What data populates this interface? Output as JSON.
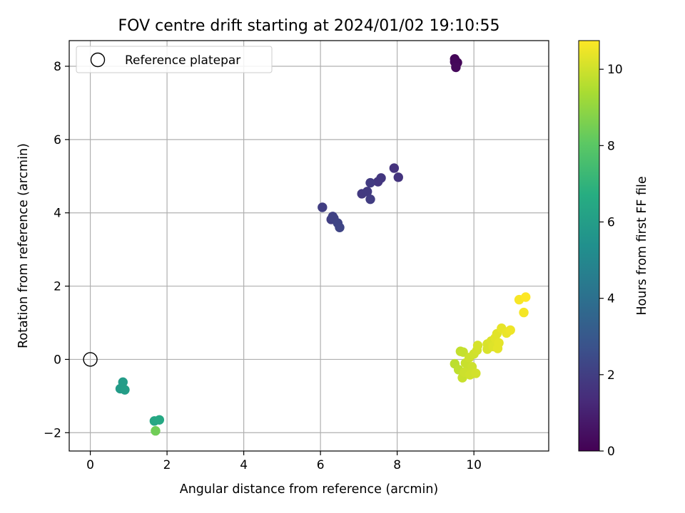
{
  "chart_data": {
    "type": "scatter",
    "title": "FOV centre drift starting at 2024/01/02 19:10:55",
    "xlabel": "Angular distance from reference (arcmin)",
    "ylabel": "Rotation from reference (arcmin)",
    "xlim": [
      -0.55,
      11.95
    ],
    "ylim": [
      -2.5,
      8.7
    ],
    "xticks": [
      0,
      2,
      4,
      6,
      8,
      10
    ],
    "yticks": [
      -2,
      0,
      2,
      4,
      6,
      8
    ],
    "grid": true,
    "legend": {
      "placement": "top-left",
      "entries": [
        {
          "label": "Reference platepar",
          "marker": "open-circle"
        }
      ]
    },
    "reference_point": {
      "x": 0,
      "y": 0
    },
    "colorbar": {
      "label": "Hours from first FF file",
      "colormap": "viridis",
      "range": [
        0,
        10.75
      ],
      "ticks": [
        0,
        2,
        4,
        6,
        8,
        10
      ]
    },
    "points": [
      {
        "x": 9.5,
        "y": 8.2,
        "hours": 0.1
      },
      {
        "x": 9.57,
        "y": 8.1,
        "hours": 0.15
      },
      {
        "x": 9.5,
        "y": 8.12,
        "hours": 0.2
      },
      {
        "x": 9.53,
        "y": 7.97,
        "hours": 0.25
      },
      {
        "x": 6.05,
        "y": 4.15,
        "hours": 2.0
      },
      {
        "x": 6.28,
        "y": 3.82,
        "hours": 2.05
      },
      {
        "x": 6.32,
        "y": 3.9,
        "hours": 2.1
      },
      {
        "x": 6.35,
        "y": 3.85,
        "hours": 2.15
      },
      {
        "x": 6.45,
        "y": 3.72,
        "hours": 2.2
      },
      {
        "x": 6.5,
        "y": 3.6,
        "hours": 2.25
      },
      {
        "x": 7.08,
        "y": 4.52,
        "hours": 1.8
      },
      {
        "x": 7.22,
        "y": 4.58,
        "hours": 1.85
      },
      {
        "x": 7.3,
        "y": 4.82,
        "hours": 1.9
      },
      {
        "x": 7.3,
        "y": 4.37,
        "hours": 1.95
      },
      {
        "x": 7.5,
        "y": 4.85,
        "hours": 1.7
      },
      {
        "x": 7.58,
        "y": 4.95,
        "hours": 1.75
      },
      {
        "x": 7.92,
        "y": 5.22,
        "hours": 1.6
      },
      {
        "x": 8.03,
        "y": 4.97,
        "hours": 1.65
      },
      {
        "x": 0.78,
        "y": -0.8,
        "hours": 5.9
      },
      {
        "x": 0.85,
        "y": -0.62,
        "hours": 5.95
      },
      {
        "x": 0.9,
        "y": -0.83,
        "hours": 6.0
      },
      {
        "x": 1.67,
        "y": -1.68,
        "hours": 6.4
      },
      {
        "x": 1.8,
        "y": -1.65,
        "hours": 6.5
      },
      {
        "x": 1.7,
        "y": -1.95,
        "hours": 8.4
      },
      {
        "x": 9.5,
        "y": -0.12,
        "hours": 9.7
      },
      {
        "x": 9.6,
        "y": -0.28,
        "hours": 9.75
      },
      {
        "x": 9.65,
        "y": 0.22,
        "hours": 9.8
      },
      {
        "x": 9.72,
        "y": 0.2,
        "hours": 9.85
      },
      {
        "x": 9.7,
        "y": -0.5,
        "hours": 9.9
      },
      {
        "x": 9.75,
        "y": -0.35,
        "hours": 9.95
      },
      {
        "x": 9.78,
        "y": -0.1,
        "hours": 9.9
      },
      {
        "x": 9.85,
        "y": -0.25,
        "hours": 9.85
      },
      {
        "x": 9.88,
        "y": 0.05,
        "hours": 9.95
      },
      {
        "x": 9.9,
        "y": -0.42,
        "hours": 10.0
      },
      {
        "x": 9.95,
        "y": -0.2,
        "hours": 9.95
      },
      {
        "x": 10.0,
        "y": 0.15,
        "hours": 10.0
      },
      {
        "x": 10.05,
        "y": -0.38,
        "hours": 10.05
      },
      {
        "x": 10.08,
        "y": 0.25,
        "hours": 10.05
      },
      {
        "x": 10.1,
        "y": 0.38,
        "hours": 10.1
      },
      {
        "x": 10.35,
        "y": 0.42,
        "hours": 10.15
      },
      {
        "x": 10.35,
        "y": 0.28,
        "hours": 10.15
      },
      {
        "x": 10.45,
        "y": 0.5,
        "hours": 10.2
      },
      {
        "x": 10.5,
        "y": 0.35,
        "hours": 10.25
      },
      {
        "x": 10.55,
        "y": 0.58,
        "hours": 10.3
      },
      {
        "x": 10.6,
        "y": 0.7,
        "hours": 10.3
      },
      {
        "x": 10.62,
        "y": 0.3,
        "hours": 10.35
      },
      {
        "x": 10.65,
        "y": 0.45,
        "hours": 10.35
      },
      {
        "x": 10.72,
        "y": 0.85,
        "hours": 10.4
      },
      {
        "x": 10.85,
        "y": 0.72,
        "hours": 10.45
      },
      {
        "x": 10.95,
        "y": 0.8,
        "hours": 10.5
      },
      {
        "x": 11.18,
        "y": 1.63,
        "hours": 10.65
      },
      {
        "x": 11.3,
        "y": 1.28,
        "hours": 10.6
      },
      {
        "x": 11.35,
        "y": 1.7,
        "hours": 10.75
      }
    ]
  }
}
